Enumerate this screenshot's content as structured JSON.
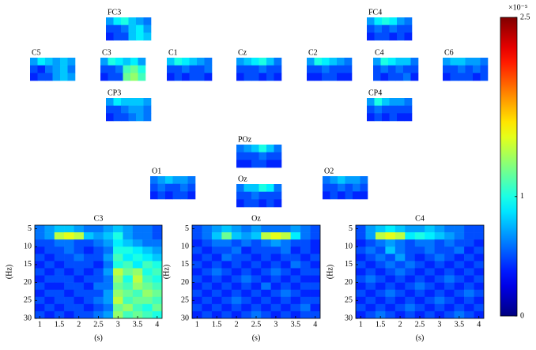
{
  "chart_data": {
    "type": "heatmap",
    "colormap": "jet",
    "colorbar": {
      "clim": [
        0,
        2.5
      ],
      "ticks": [
        0,
        1,
        2.5
      ],
      "label": "×10⁻⁵"
    },
    "panels": [
      {
        "title": "FC3",
        "values": [
          [
            0.7,
            0.9,
            1.0,
            0.8,
            0.7,
            0.6
          ],
          [
            0.5,
            0.5,
            0.6,
            0.8,
            0.9,
            0.7
          ],
          [
            0.4,
            0.5,
            0.5,
            0.8,
            0.9,
            0.8
          ]
        ]
      },
      {
        "title": "FC4",
        "values": [
          [
            0.7,
            0.9,
            1.0,
            0.9,
            0.7,
            0.6
          ],
          [
            0.5,
            0.6,
            0.5,
            0.6,
            0.5,
            0.5
          ],
          [
            0.4,
            0.5,
            0.5,
            0.4,
            0.5,
            0.4
          ]
        ]
      },
      {
        "title": "C5",
        "values": [
          [
            0.7,
            0.9,
            0.8,
            0.7,
            0.8,
            0.7
          ],
          [
            0.5,
            0.4,
            0.6,
            0.7,
            0.8,
            0.6
          ],
          [
            0.4,
            0.5,
            0.5,
            0.7,
            0.8,
            0.7
          ]
        ]
      },
      {
        "title": "C3",
        "values": [
          [
            0.7,
            1.0,
            0.9,
            0.8,
            0.9,
            0.7
          ],
          [
            0.5,
            0.5,
            0.6,
            1.1,
            1.2,
            1.0
          ],
          [
            0.4,
            0.5,
            0.5,
            1.2,
            1.3,
            1.1
          ]
        ]
      },
      {
        "title": "C1",
        "values": [
          [
            0.8,
            1.0,
            0.9,
            0.8,
            0.7,
            0.6
          ],
          [
            0.5,
            0.5,
            0.6,
            0.5,
            0.5,
            0.6
          ],
          [
            0.4,
            0.5,
            0.4,
            0.5,
            0.5,
            0.4
          ]
        ]
      },
      {
        "title": "Cz",
        "values": [
          [
            0.7,
            0.8,
            0.9,
            1.0,
            0.8,
            0.6
          ],
          [
            0.5,
            0.5,
            0.5,
            0.6,
            0.5,
            0.5
          ],
          [
            0.4,
            0.5,
            0.5,
            0.4,
            0.5,
            0.4
          ]
        ]
      },
      {
        "title": "C2",
        "values": [
          [
            0.7,
            1.0,
            0.9,
            0.8,
            0.7,
            0.6
          ],
          [
            0.5,
            0.5,
            0.6,
            0.5,
            0.5,
            0.5
          ],
          [
            0.4,
            0.4,
            0.5,
            0.5,
            0.4,
            0.4
          ]
        ]
      },
      {
        "title": "C4",
        "values": [
          [
            0.7,
            1.0,
            0.9,
            0.8,
            0.8,
            0.6
          ],
          [
            0.5,
            0.6,
            0.5,
            0.6,
            0.5,
            0.5
          ],
          [
            0.5,
            0.4,
            0.5,
            0.5,
            0.6,
            0.4
          ]
        ]
      },
      {
        "title": "C6",
        "values": [
          [
            0.7,
            0.8,
            0.8,
            0.7,
            0.7,
            0.6
          ],
          [
            0.5,
            0.5,
            0.6,
            0.5,
            0.6,
            0.5
          ],
          [
            0.4,
            0.5,
            0.5,
            0.5,
            0.4,
            0.5
          ]
        ]
      },
      {
        "title": "CP3",
        "values": [
          [
            0.7,
            0.9,
            0.8,
            0.8,
            0.8,
            0.7
          ],
          [
            0.5,
            0.5,
            0.6,
            0.7,
            0.7,
            0.6
          ],
          [
            0.4,
            0.5,
            0.5,
            0.6,
            0.7,
            0.6
          ]
        ]
      },
      {
        "title": "CP4",
        "values": [
          [
            0.7,
            1.0,
            0.8,
            0.7,
            0.7,
            0.6
          ],
          [
            0.5,
            0.6,
            0.5,
            0.5,
            0.5,
            0.5
          ],
          [
            0.4,
            0.5,
            0.4,
            0.5,
            0.4,
            0.4
          ]
        ]
      },
      {
        "title": "POz",
        "values": [
          [
            0.6,
            0.7,
            0.8,
            1.0,
            0.8,
            0.6
          ],
          [
            0.5,
            0.5,
            0.5,
            0.6,
            0.5,
            0.5
          ],
          [
            0.4,
            0.4,
            0.5,
            0.5,
            0.4,
            0.4
          ]
        ]
      },
      {
        "title": "O1",
        "values": [
          [
            0.6,
            0.7,
            0.8,
            0.7,
            0.7,
            0.6
          ],
          [
            0.5,
            0.6,
            0.5,
            0.5,
            0.6,
            0.5
          ],
          [
            0.4,
            0.5,
            0.4,
            0.5,
            0.5,
            0.4
          ]
        ]
      },
      {
        "title": "Oz",
        "values": [
          [
            0.6,
            0.8,
            0.8,
            1.0,
            0.9,
            0.6
          ],
          [
            0.5,
            0.5,
            0.6,
            0.5,
            0.5,
            0.5
          ],
          [
            0.4,
            0.5,
            0.5,
            0.4,
            0.5,
            0.4
          ]
        ]
      },
      {
        "title": "O2",
        "values": [
          [
            0.6,
            0.7,
            0.8,
            0.7,
            0.7,
            0.6
          ],
          [
            0.5,
            0.5,
            0.6,
            0.5,
            0.6,
            0.5
          ],
          [
            0.4,
            0.5,
            0.4,
            0.5,
            0.4,
            0.4
          ]
        ]
      },
      {
        "title": "C3",
        "xlabel": "(s)",
        "ylabel": "(Hz)",
        "yreverse": true,
        "x": [
          1,
          1.25,
          1.5,
          1.75,
          2,
          2.25,
          2.5,
          2.75,
          3,
          3.25,
          3.5,
          3.75,
          4
        ],
        "y": [
          5,
          7,
          9,
          11,
          13,
          15,
          17,
          19,
          21,
          23,
          25,
          27,
          29
        ],
        "xlim": [
          0.875,
          4.125
        ],
        "ylim": [
          4,
          30
        ],
        "xticks": [
          1,
          1.5,
          2,
          2.5,
          3,
          3.5,
          4
        ],
        "yticks": [
          5,
          10,
          15,
          20,
          25,
          30
        ],
        "values": [
          [
            0.6,
            0.7,
            0.8,
            0.8,
            0.7,
            0.6,
            0.6,
            0.7,
            0.8,
            0.7,
            0.6,
            0.6,
            0.5
          ],
          [
            0.6,
            0.7,
            1.4,
            1.5,
            1.4,
            0.8,
            0.7,
            0.8,
            1.0,
            0.7,
            0.6,
            0.6,
            0.5
          ],
          [
            0.5,
            0.5,
            0.6,
            0.6,
            0.5,
            0.5,
            0.6,
            0.7,
            0.9,
            0.8,
            0.7,
            0.6,
            0.6
          ],
          [
            0.4,
            0.5,
            0.5,
            0.6,
            0.5,
            0.4,
            0.5,
            0.6,
            1.0,
            1.0,
            0.9,
            0.8,
            0.7
          ],
          [
            0.5,
            0.4,
            0.5,
            0.5,
            0.6,
            0.5,
            0.5,
            0.7,
            1.1,
            0.9,
            1.0,
            0.9,
            0.8
          ],
          [
            0.4,
            0.5,
            0.4,
            0.5,
            0.5,
            0.5,
            0.4,
            0.6,
            1.0,
            1.1,
            0.9,
            1.1,
            1.0
          ],
          [
            0.5,
            0.4,
            0.5,
            0.4,
            0.5,
            0.4,
            0.5,
            0.7,
            1.4,
            1.2,
            1.3,
            1.0,
            1.1
          ],
          [
            0.4,
            0.5,
            0.5,
            0.5,
            0.4,
            0.5,
            0.5,
            0.6,
            1.3,
            1.0,
            1.4,
            1.1,
            1.0
          ],
          [
            0.5,
            0.4,
            0.4,
            0.5,
            0.5,
            0.4,
            0.6,
            0.6,
            1.2,
            1.1,
            1.3,
            1.2,
            1.1
          ],
          [
            0.4,
            0.5,
            0.5,
            0.4,
            0.5,
            0.5,
            0.5,
            0.7,
            1.3,
            1.2,
            1.1,
            1.3,
            1.2
          ],
          [
            0.5,
            0.4,
            0.5,
            0.5,
            0.4,
            0.5,
            0.6,
            0.7,
            1.4,
            1.1,
            1.2,
            1.2,
            1.1
          ],
          [
            0.4,
            0.5,
            0.4,
            0.5,
            0.5,
            0.4,
            0.5,
            0.6,
            1.2,
            1.3,
            1.1,
            1.0,
            1.2
          ],
          [
            0.5,
            0.4,
            0.5,
            0.4,
            0.5,
            0.5,
            0.6,
            0.7,
            1.3,
            1.1,
            1.2,
            1.1,
            1.0
          ]
        ]
      },
      {
        "title": "Oz",
        "xlabel": "(s)",
        "ylabel": "(Hz)",
        "yreverse": true,
        "x": [
          1,
          1.25,
          1.5,
          1.75,
          2,
          2.25,
          2.5,
          2.75,
          3,
          3.25,
          3.5,
          3.75,
          4
        ],
        "y": [
          5,
          7,
          9,
          11,
          13,
          15,
          17,
          19,
          21,
          23,
          25,
          27,
          29
        ],
        "xlim": [
          0.875,
          4.125
        ],
        "ylim": [
          4,
          30
        ],
        "xticks": [
          1,
          1.5,
          2,
          2.5,
          3,
          3.5,
          4
        ],
        "yticks": [
          5,
          10,
          15,
          20,
          25,
          30
        ],
        "values": [
          [
            0.5,
            0.6,
            0.7,
            0.8,
            0.7,
            0.6,
            0.7,
            0.6,
            0.6,
            0.6,
            0.7,
            0.6,
            0.5
          ],
          [
            0.5,
            0.6,
            0.8,
            1.2,
            0.8,
            0.7,
            0.8,
            1.4,
            1.5,
            1.4,
            0.9,
            0.6,
            0.5
          ],
          [
            0.4,
            0.5,
            0.6,
            0.6,
            0.5,
            0.6,
            0.5,
            0.6,
            0.7,
            0.6,
            0.5,
            0.5,
            0.4
          ],
          [
            0.5,
            0.4,
            0.5,
            0.5,
            0.6,
            0.4,
            0.5,
            0.5,
            0.5,
            0.6,
            0.4,
            0.5,
            0.4
          ],
          [
            0.4,
            0.5,
            0.4,
            0.6,
            0.5,
            0.5,
            0.4,
            0.5,
            0.4,
            0.5,
            0.5,
            0.4,
            0.5
          ],
          [
            0.5,
            0.4,
            0.5,
            0.4,
            0.5,
            0.4,
            0.5,
            0.4,
            0.5,
            0.4,
            0.6,
            0.5,
            0.4
          ],
          [
            0.4,
            0.5,
            0.6,
            0.5,
            0.4,
            0.5,
            0.4,
            0.5,
            0.6,
            0.5,
            0.4,
            0.5,
            0.5
          ],
          [
            0.5,
            0.4,
            0.5,
            0.4,
            0.5,
            0.6,
            0.5,
            0.4,
            0.5,
            0.4,
            0.5,
            0.4,
            0.4
          ],
          [
            0.4,
            0.5,
            0.4,
            0.5,
            0.4,
            0.5,
            0.4,
            0.6,
            0.4,
            0.5,
            0.4,
            0.5,
            0.5
          ],
          [
            0.5,
            0.4,
            0.5,
            0.4,
            0.5,
            0.4,
            0.5,
            0.4,
            0.5,
            0.6,
            0.5,
            0.4,
            0.4
          ],
          [
            0.4,
            0.5,
            0.4,
            0.5,
            0.6,
            0.5,
            0.4,
            0.5,
            0.4,
            0.5,
            0.4,
            0.5,
            0.5
          ],
          [
            0.5,
            0.4,
            0.5,
            0.4,
            0.5,
            0.4,
            0.5,
            0.4,
            0.5,
            0.4,
            0.5,
            0.6,
            0.4
          ],
          [
            0.4,
            0.5,
            0.4,
            0.5,
            0.4,
            0.5,
            0.6,
            0.5,
            0.4,
            0.5,
            0.4,
            0.5,
            0.5
          ]
        ]
      },
      {
        "title": "C4",
        "xlabel": "(s)",
        "ylabel": "(Hz)",
        "yreverse": true,
        "x": [
          1,
          1.25,
          1.5,
          1.75,
          2,
          2.25,
          2.5,
          2.75,
          3,
          3.25,
          3.5,
          3.75,
          4
        ],
        "y": [
          5,
          7,
          9,
          11,
          13,
          15,
          17,
          19,
          21,
          23,
          25,
          27,
          29
        ],
        "xlim": [
          0.875,
          4.125
        ],
        "ylim": [
          4,
          30
        ],
        "xticks": [
          1,
          1.5,
          2,
          2.5,
          3,
          3.5,
          4
        ],
        "yticks": [
          5,
          10,
          15,
          20,
          25,
          30
        ],
        "values": [
          [
            0.5,
            0.7,
            0.8,
            0.9,
            0.8,
            0.7,
            0.7,
            0.8,
            0.7,
            0.6,
            0.6,
            0.5,
            0.5
          ],
          [
            0.5,
            0.7,
            1.4,
            1.5,
            1.4,
            0.9,
            1.0,
            0.9,
            0.8,
            0.7,
            0.6,
            0.5,
            0.5
          ],
          [
            0.4,
            0.5,
            0.6,
            0.7,
            0.6,
            0.5,
            0.6,
            0.6,
            0.5,
            0.6,
            0.5,
            0.5,
            0.4
          ],
          [
            0.5,
            0.6,
            0.5,
            0.8,
            0.6,
            0.5,
            0.5,
            0.6,
            0.5,
            0.5,
            0.6,
            0.4,
            0.5
          ],
          [
            0.4,
            0.5,
            0.6,
            0.5,
            0.7,
            0.5,
            0.4,
            0.5,
            0.6,
            0.5,
            0.4,
            0.5,
            0.4
          ],
          [
            0.5,
            0.4,
            0.5,
            0.6,
            0.5,
            0.6,
            0.5,
            0.4,
            0.5,
            0.4,
            0.5,
            0.4,
            0.5
          ],
          [
            0.4,
            0.5,
            0.4,
            0.5,
            0.6,
            0.5,
            0.4,
            0.5,
            0.4,
            0.5,
            0.4,
            0.5,
            0.4
          ],
          [
            0.5,
            0.6,
            0.5,
            0.4,
            0.5,
            0.4,
            0.5,
            0.4,
            0.5,
            0.6,
            0.5,
            0.4,
            0.5
          ],
          [
            0.4,
            0.5,
            0.4,
            0.5,
            0.4,
            0.5,
            0.6,
            0.5,
            0.4,
            0.5,
            0.4,
            0.5,
            0.4
          ],
          [
            0.5,
            0.4,
            0.5,
            0.6,
            0.5,
            0.4,
            0.5,
            0.4,
            0.5,
            0.4,
            0.5,
            0.6,
            0.5
          ],
          [
            0.4,
            0.5,
            0.4,
            0.5,
            0.4,
            0.5,
            0.4,
            0.5,
            0.6,
            0.5,
            0.4,
            0.5,
            0.4
          ],
          [
            0.5,
            0.4,
            0.5,
            0.4,
            0.5,
            0.6,
            0.5,
            0.4,
            0.5,
            0.4,
            0.5,
            0.4,
            0.5
          ],
          [
            0.4,
            0.5,
            0.6,
            0.5,
            0.4,
            0.5,
            0.4,
            0.5,
            0.4,
            0.5,
            0.6,
            0.5,
            0.4
          ]
        ]
      }
    ]
  }
}
